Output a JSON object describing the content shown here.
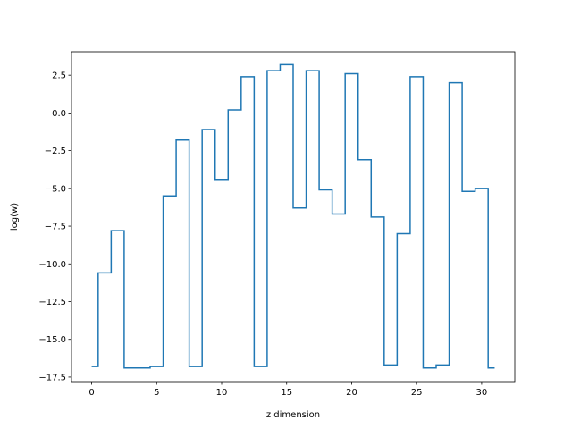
{
  "chart_data": {
    "type": "line",
    "drawstyle": "steps-mid",
    "xlabel": "z dimension",
    "ylabel": "log(w)",
    "xlim": [
      -1.55,
      32.55
    ],
    "ylim": [
      -17.8,
      4.05
    ],
    "xticks": [
      0,
      5,
      10,
      15,
      20,
      25,
      30
    ],
    "yticks": [
      -17.5,
      -15.0,
      -12.5,
      -10.0,
      -7.5,
      -5.0,
      -2.5,
      0.0,
      2.5
    ],
    "xtick_labels": [
      "0",
      "5",
      "10",
      "15",
      "20",
      "25",
      "30"
    ],
    "ytick_labels": [
      "−17.5",
      "−15.0",
      "−12.5",
      "−10.0",
      "−7.5",
      "−5.0",
      "−2.5",
      "0.0",
      "2.5"
    ],
    "grid": false,
    "line_color": "#1f77b4",
    "series": [
      {
        "x": [
          0,
          1,
          2,
          3,
          4,
          5,
          6,
          7,
          8,
          9,
          10,
          11,
          12,
          13,
          14,
          15,
          16,
          17,
          18,
          19,
          20,
          21,
          22,
          23,
          24,
          25,
          26,
          27,
          28,
          29,
          30,
          31
        ],
        "values": [
          -16.8,
          -10.6,
          -7.8,
          -16.9,
          -16.9,
          -16.8,
          -5.5,
          -1.8,
          -16.8,
          -1.1,
          -4.4,
          0.2,
          2.4,
          -16.8,
          2.8,
          3.2,
          -6.3,
          2.8,
          -5.1,
          -6.7,
          2.6,
          -3.1,
          -6.9,
          -16.7,
          -8.0,
          2.4,
          -16.9,
          -16.7,
          2.0,
          -5.2,
          -5.0,
          -16.9
        ]
      }
    ]
  }
}
